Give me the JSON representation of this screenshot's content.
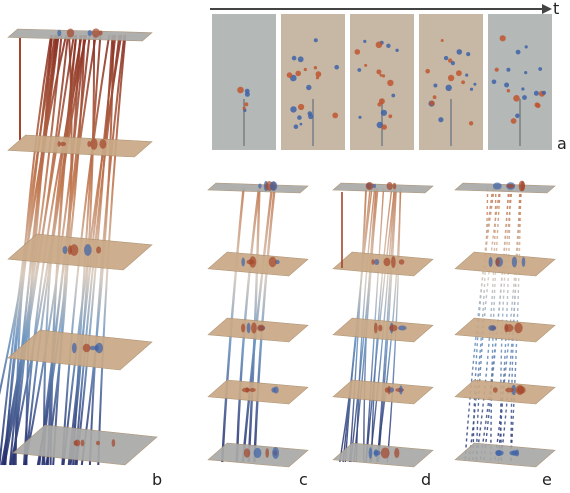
{
  "figure": {
    "time_axis": {
      "label": "t"
    },
    "panels": [
      {
        "id": "a",
        "label": "a"
      },
      {
        "id": "b",
        "label": "b"
      },
      {
        "id": "c",
        "label": "c"
      },
      {
        "id": "d",
        "label": "d"
      },
      {
        "id": "e",
        "label": "e"
      }
    ],
    "snapshot_count": 5,
    "plane_count_b": 5,
    "plane_count_small": 5,
    "colors": {
      "plane": "#c9a986",
      "plane_edge": "#a98c6b",
      "plane_grey": "#a9aaa8",
      "snapshot_bg": "#c7b8a6",
      "snapshot_bg_grey": "#b4b8b7",
      "warm": "#a4442a",
      "warm_light": "#d9a07a",
      "cool": "#5a86b8",
      "cool_dark": "#27306f",
      "blob_red": "#c0552f",
      "blob_blue": "#3d62a8"
    }
  }
}
